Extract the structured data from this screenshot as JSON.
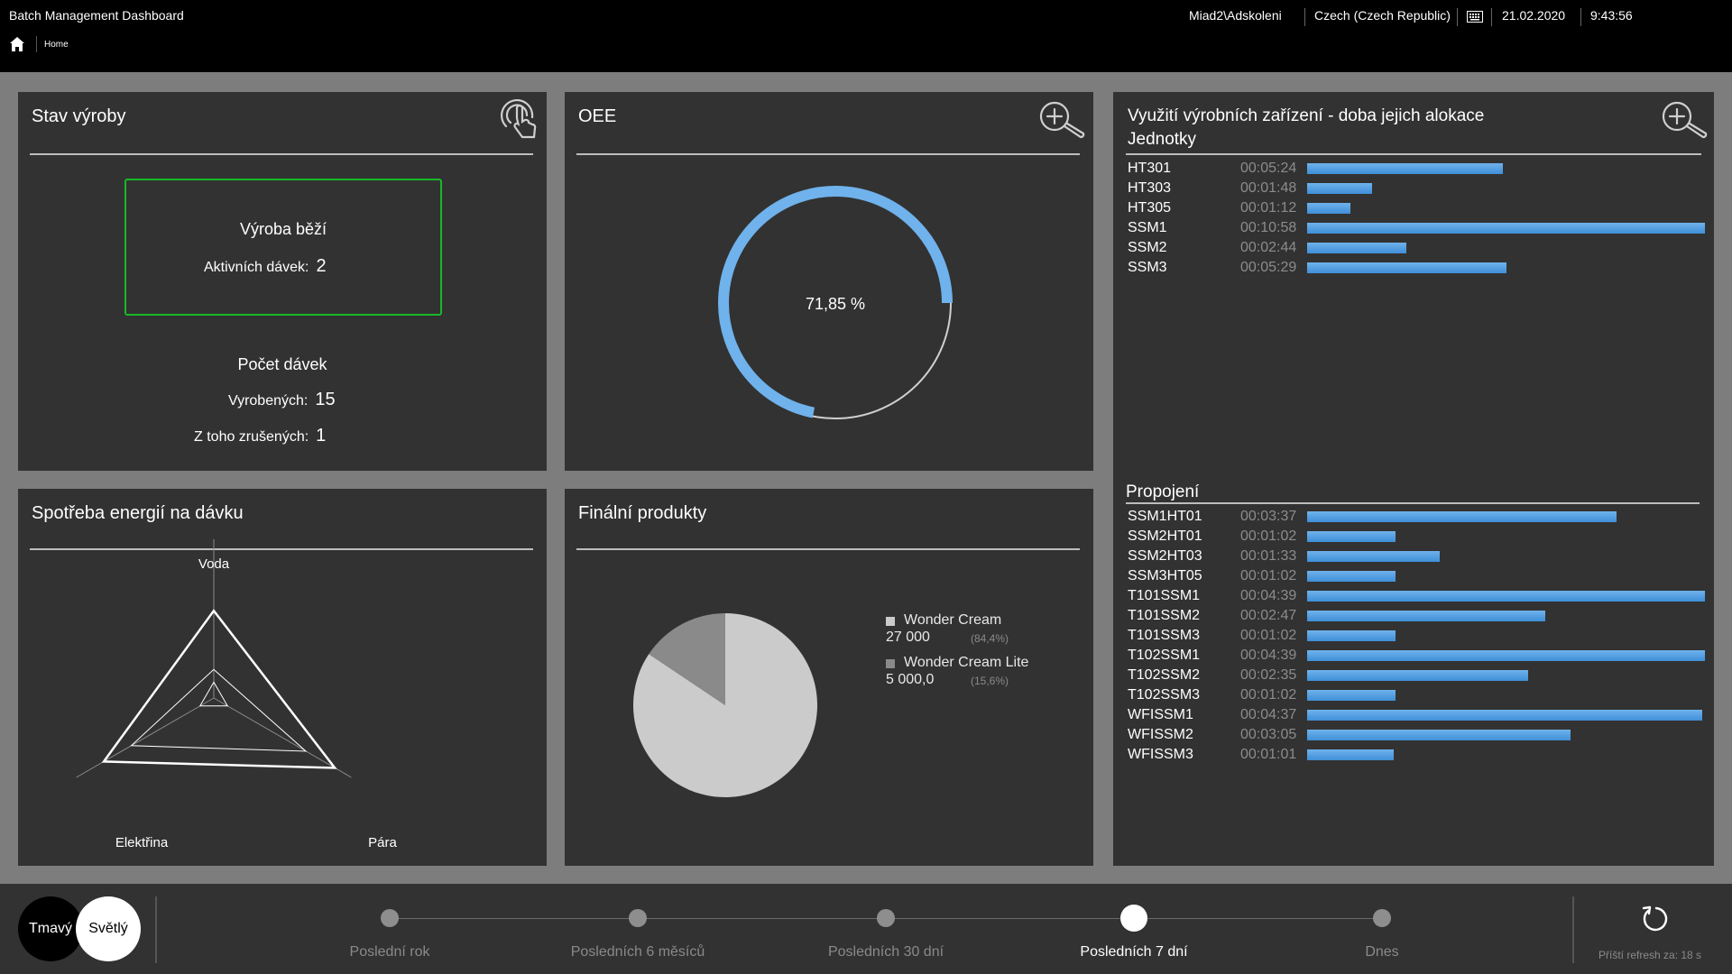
{
  "header": {
    "app_title": "Batch Management Dashboard",
    "breadcrumb_home": "Home",
    "user": "Miad2\\Adskoleni",
    "locale": "Czech (Czech Republic)",
    "keyboard_icon": "keyboard-icon",
    "date": "21.02.2020",
    "time": "9:43:56"
  },
  "production_status": {
    "title": "Stav výroby",
    "icon": "touch-gesture-icon",
    "running_label": "Výroba běží",
    "active_batches_label": "Aktivních dávek:",
    "active_batches": "2",
    "batch_count_title": "Počet dávek",
    "produced_label": "Vyrobených:",
    "produced": "15",
    "cancelled_label": "Z toho zrušených:",
    "cancelled": "1",
    "status_color": "#18b828"
  },
  "oee": {
    "title": "OEE",
    "icon": "zoom-in-icon",
    "value": 71.85,
    "value_label": "71,85 %",
    "fill_color": "#6fb2ec"
  },
  "energy": {
    "title": "Spotřeba energií na dávku",
    "axes": [
      "Voda",
      "Pára",
      "Elektřina"
    ],
    "outer_levels": [
      0.55,
      0.88,
      0.8
    ],
    "inner_levels": [
      0.18,
      0.67,
      0.6
    ]
  },
  "final_products": {
    "title": "Finální produkty",
    "items": [
      {
        "name": "Wonder Cream",
        "value": "27 000",
        "pct": "(84,4%)",
        "share": 0.844,
        "color": "#cbcbcb"
      },
      {
        "name": "Wonder Cream Lite",
        "value": "5 000,0",
        "pct": "(15,6%)",
        "share": 0.156,
        "color": "#8a8a8a"
      }
    ]
  },
  "utilization": {
    "title": "Využití výrobních zařízení - doba jejich alokace",
    "icon": "zoom-in-icon",
    "units_title": "Jednotky",
    "units": [
      {
        "name": "HT301",
        "time": "00:05:24"
      },
      {
        "name": "HT303",
        "time": "00:01:48"
      },
      {
        "name": "HT305",
        "time": "00:01:12"
      },
      {
        "name": "SSM1",
        "time": "00:10:58"
      },
      {
        "name": "SSM2",
        "time": "00:02:44"
      },
      {
        "name": "SSM3",
        "time": "00:05:29"
      }
    ],
    "connections_title": "Propojení",
    "connections": [
      {
        "name": "SSM1HT01",
        "time": "00:03:37"
      },
      {
        "name": "SSM2HT01",
        "time": "00:01:02"
      },
      {
        "name": "SSM2HT03",
        "time": "00:01:33"
      },
      {
        "name": "SSM3HT05",
        "time": "00:01:02"
      },
      {
        "name": "T101SSM1",
        "time": "00:04:39"
      },
      {
        "name": "T101SSM2",
        "time": "00:02:47"
      },
      {
        "name": "T101SSM3",
        "time": "00:01:02"
      },
      {
        "name": "T102SSM1",
        "time": "00:04:39"
      },
      {
        "name": "T102SSM2",
        "time": "00:02:35"
      },
      {
        "name": "T102SSM3",
        "time": "00:01:02"
      },
      {
        "name": "WFISSM1",
        "time": "00:04:37"
      },
      {
        "name": "WFISSM2",
        "time": "00:03:05"
      },
      {
        "name": "WFISSM3",
        "time": "00:01:01"
      }
    ]
  },
  "footer": {
    "theme_dark": "Tmavý",
    "theme_light": "Světlý",
    "periods": [
      "Poslední rok",
      "Posledních 6 měsíců",
      "Posledních 30 dní",
      "Posledních 7 dní",
      "Dnes"
    ],
    "active_period": "Posledních 7 dní",
    "refresh_icon": "refresh-icon",
    "refresh_text": "Příští refresh za: 18 s"
  }
}
